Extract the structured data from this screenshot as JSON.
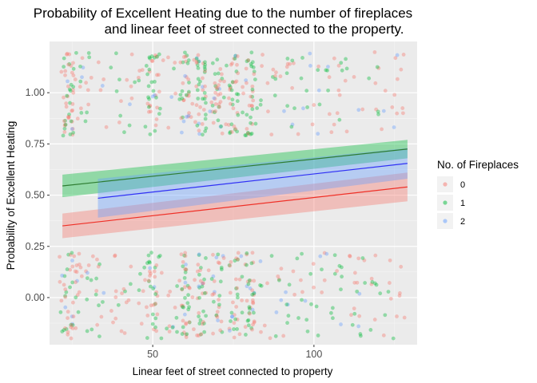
{
  "chart_data": {
    "type": "scatter",
    "title_lines": [
      "Probability of Excellent Heating due to the number of fireplaces",
      "and linear feet of street connected to the property."
    ],
    "xlabel": "Linear feet of street connected to property",
    "ylabel": "Probability of Excellent Heating",
    "xlim": [
      18,
      132
    ],
    "ylim": [
      -0.23,
      1.25
    ],
    "x_ticks": [
      50,
      100
    ],
    "x_tick_labels": [
      "50",
      "100"
    ],
    "y_ticks": [
      0.0,
      0.25,
      0.5,
      0.75,
      1.0
    ],
    "y_tick_labels": [
      "0.00",
      "0.25",
      "0.50",
      "0.75",
      "1.00"
    ],
    "grid": true,
    "legend": {
      "title": "No. of Fireplaces",
      "position": "right",
      "entries": [
        "0",
        "1",
        "2"
      ]
    },
    "colors": {
      "panel_bg": "#ebebeb",
      "grid_major": "#ffffff",
      "grid_minor": "#f5f5f5",
      "series": [
        "#F8766D",
        "#00BA38",
        "#619CFF"
      ],
      "fit_lines": [
        "#ef2f26",
        "#2e7d32",
        "#2f2ff5"
      ]
    },
    "series": [
      {
        "name": "0",
        "fit": {
          "x": [
            22,
            129
          ],
          "y": [
            0.35,
            0.54
          ]
        },
        "band_low": [
          0.29,
          0.47
        ],
        "band_high": [
          0.41,
          0.61
        ]
      },
      {
        "name": "1",
        "fit": {
          "x": [
            22,
            129
          ],
          "y": [
            0.545,
            0.725
          ]
        },
        "band_low": [
          0.49,
          0.68
        ],
        "band_high": [
          0.6,
          0.77
        ]
      },
      {
        "name": "2",
        "fit": {
          "x": [
            33,
            129
          ],
          "y": [
            0.485,
            0.655
          ]
        },
        "band_low": [
          0.39,
          0.58
        ],
        "band_high": [
          0.58,
          0.73
        ]
      }
    ],
    "points": {
      "description_jitter": "binary outcome jittered",
      "count_per_band": 430,
      "x_range": [
        21,
        129
      ],
      "cluster_x": [
        24,
        50,
        60,
        65,
        70,
        75,
        80
      ],
      "upper_y_range": [
        0.79,
        1.2
      ],
      "lower_y_range": [
        -0.2,
        0.22
      ],
      "mix": [
        0.52,
        0.4,
        0.08
      ]
    }
  }
}
